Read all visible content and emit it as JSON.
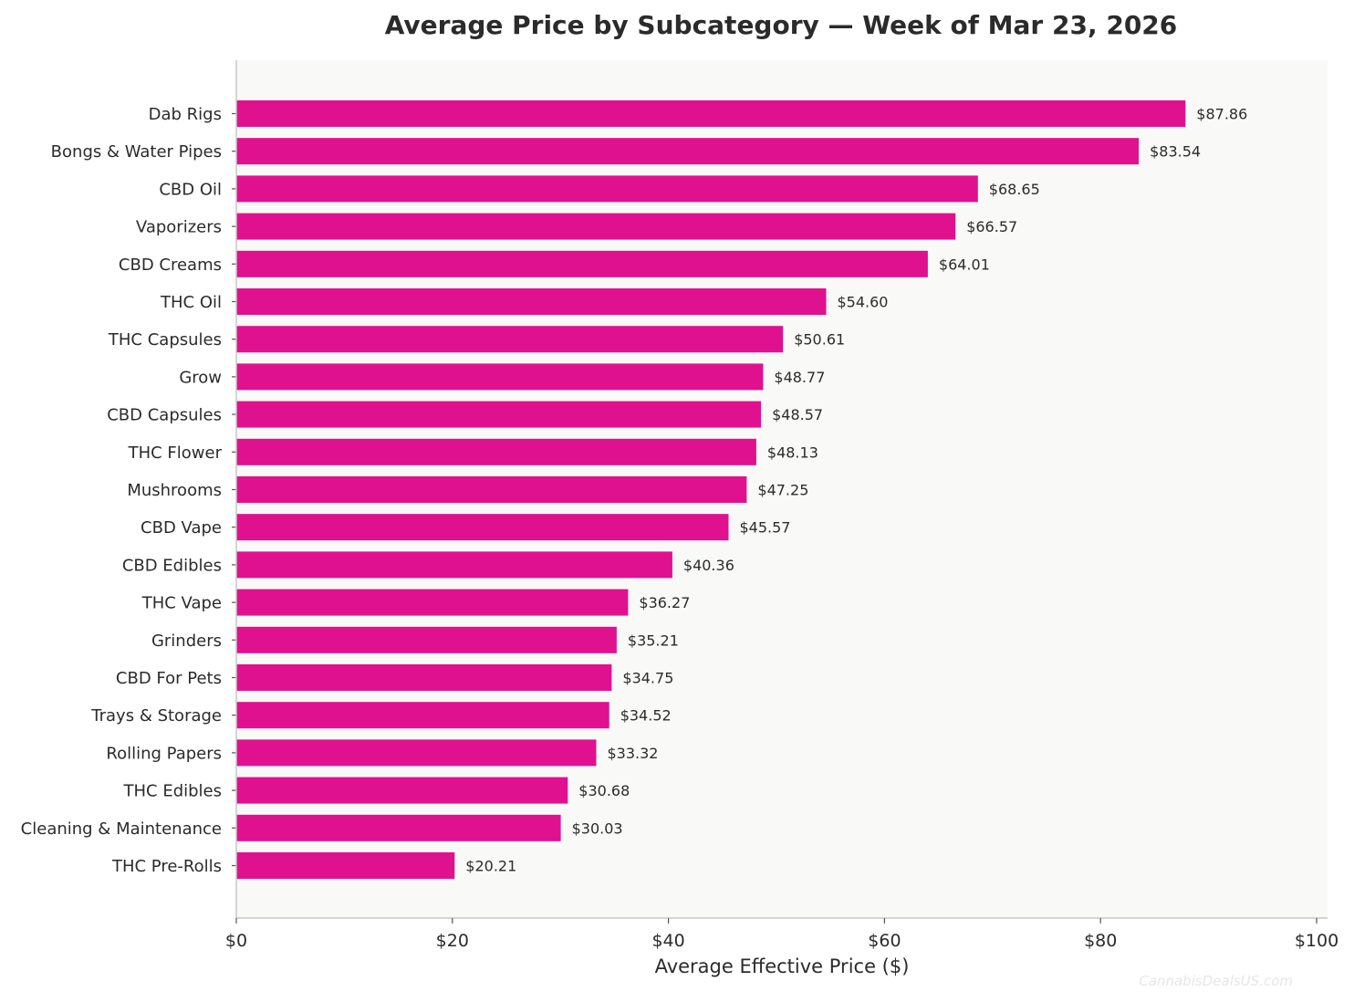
{
  "chart_data": {
    "type": "bar",
    "orientation": "horizontal",
    "title": "Average Price by Subcategory — Week of Mar 23, 2026",
    "xlabel": "Average Effective Price ($)",
    "ylabel": "",
    "xlim": [
      0,
      100
    ],
    "x_ticks": [
      "$0",
      "$20",
      "$40",
      "$60",
      "$80",
      "$100"
    ],
    "grid": false,
    "bar_color": "#e0118e",
    "plot_background": "#f9f9f8",
    "categories": [
      "Dab Rigs",
      "Bongs & Water Pipes",
      "CBD Oil",
      "Vaporizers",
      "CBD Creams",
      "THC Oil",
      "THC Capsules",
      "Grow",
      "CBD Capsules",
      "THC Flower",
      "Mushrooms",
      "CBD Vape",
      "CBD Edibles",
      "THC Vape",
      "Grinders",
      "CBD For Pets",
      "Trays & Storage",
      "Rolling Papers",
      "THC Edibles",
      "Cleaning & Maintenance",
      "THC Pre-Rolls"
    ],
    "values": [
      87.86,
      83.54,
      68.65,
      66.57,
      64.01,
      54.6,
      50.61,
      48.77,
      48.57,
      48.13,
      47.25,
      45.57,
      40.36,
      36.27,
      35.21,
      34.75,
      34.52,
      33.32,
      30.68,
      30.03,
      20.21
    ],
    "value_labels": [
      "$87.86",
      "$83.54",
      "$68.65",
      "$66.57",
      "$64.01",
      "$54.60",
      "$50.61",
      "$48.77",
      "$48.57",
      "$48.13",
      "$47.25",
      "$45.57",
      "$40.36",
      "$36.27",
      "$35.21",
      "$34.75",
      "$34.52",
      "$33.32",
      "$30.68",
      "$30.03",
      "$20.21"
    ]
  },
  "watermark": "CannabisDealsUS.com"
}
